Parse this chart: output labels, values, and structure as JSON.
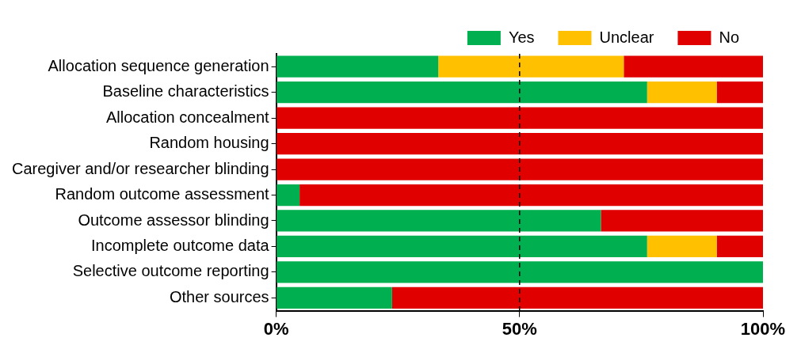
{
  "chart_data": {
    "type": "bar",
    "orientation": "horizontal",
    "stacked": true,
    "categories": [
      "Allocation sequence generation",
      "Baseline characteristics",
      "Allocation concealment",
      "Random housing",
      "Caregiver and/or researcher blinding",
      "Random outcome assessment",
      "Outcome assessor blinding",
      "Incomplete outcome data",
      "Selective outcome reporting",
      "Other sources"
    ],
    "series": [
      {
        "name": "Yes",
        "color": "#00b050",
        "values": [
          33.3,
          76.2,
          0,
          0,
          0,
          4.8,
          66.7,
          76.2,
          100,
          23.8
        ]
      },
      {
        "name": "Unclear",
        "color": "#ffc000",
        "values": [
          38.1,
          14.3,
          0,
          0,
          0,
          0,
          0,
          14.3,
          0,
          0
        ]
      },
      {
        "name": "No",
        "color": "#e00000",
        "values": [
          28.6,
          9.5,
          100,
          100,
          100,
          95.2,
          33.3,
          9.5,
          0,
          76.2
        ]
      }
    ],
    "xlim": [
      0,
      100
    ],
    "xticks": [
      {
        "value": 0,
        "label": "0%"
      },
      {
        "value": 50,
        "label": "50%"
      },
      {
        "value": 100,
        "label": "100%"
      }
    ],
    "ref_lines": [
      {
        "axis": "x",
        "value": 50,
        "color": "#000000",
        "line_style": "dashed"
      }
    ],
    "grid": false,
    "legend": "top"
  }
}
